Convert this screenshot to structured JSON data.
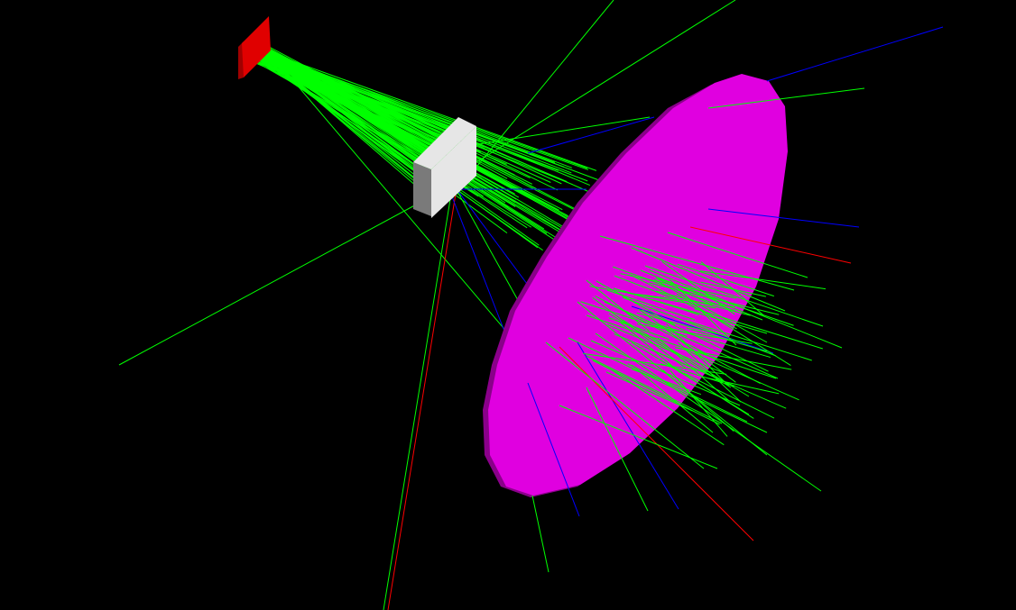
{
  "viewer": {
    "background_color": "#000000"
  },
  "scene": {
    "source_plate_color": "#e00000",
    "source_plate_shade": "#a00000",
    "block_face_color": "#e6e6e6",
    "block_side_color": "#7a7a7a",
    "detector_disk_color": "#e000e0",
    "detector_disk_edge_color": "#8a008a",
    "track_colors": {
      "neutral": "#00ff00",
      "negative": "#0000ff",
      "positive": "#ff0000"
    }
  }
}
